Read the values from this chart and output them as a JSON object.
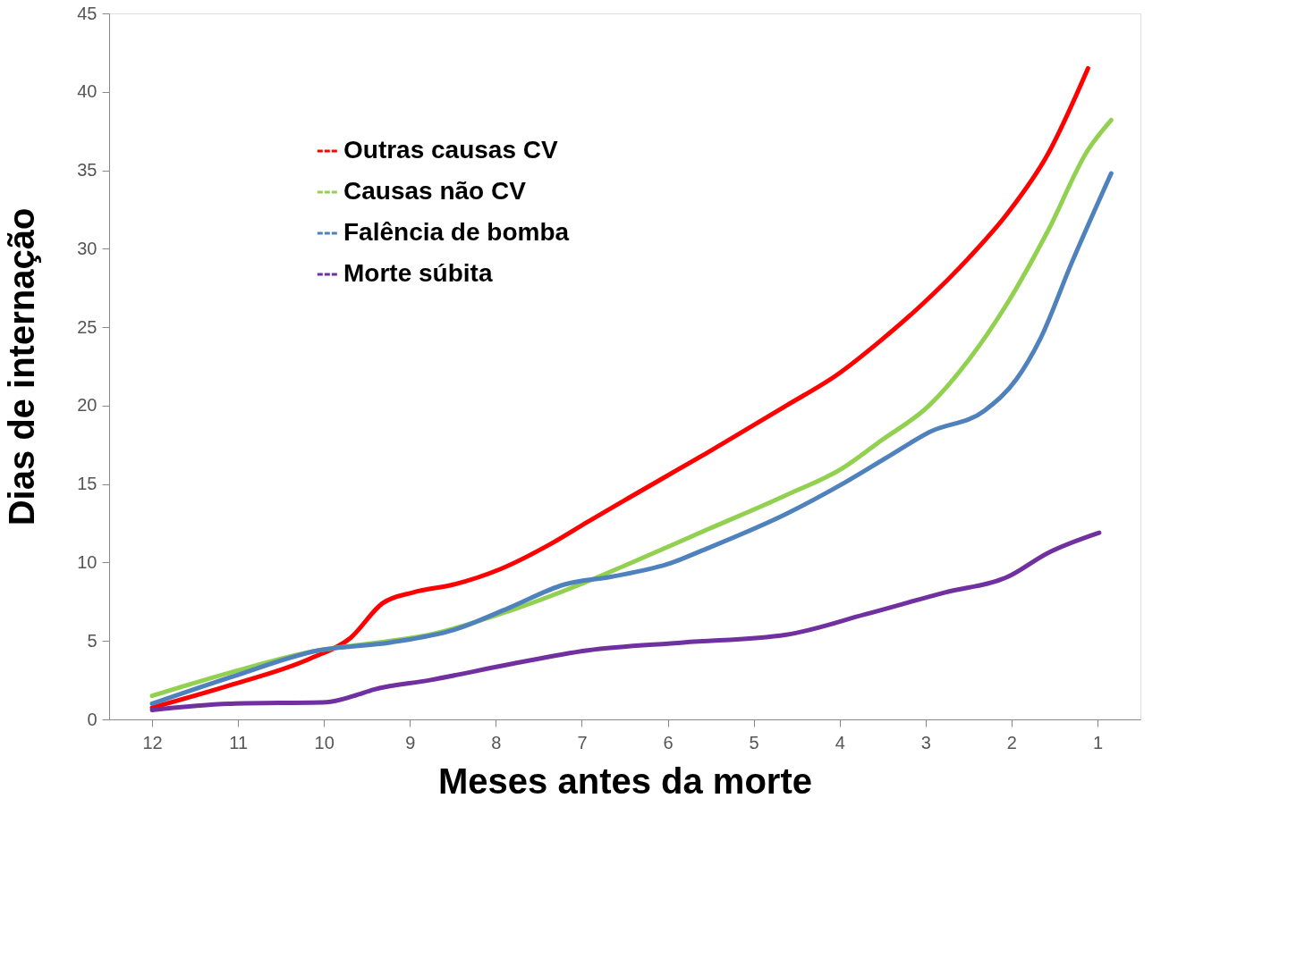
{
  "chart_data": {
    "type": "line",
    "xlabel": "Meses antes da morte",
    "ylabel": "Dias de internação",
    "xlim": [
      12.5,
      0.5
    ],
    "xticks": [
      12,
      11,
      10,
      9,
      8,
      7,
      6,
      5,
      4,
      3,
      2,
      1
    ],
    "ylim": [
      0,
      45
    ],
    "yticks": [
      0,
      5,
      10,
      15,
      20,
      25,
      30,
      35,
      40,
      45
    ],
    "grid": false,
    "legend": "top left",
    "marker": "none",
    "line_style": "solid",
    "series": [
      {
        "name": "Outras causas CV",
        "color": "#ff0000",
        "x": [
          12,
          11.08,
          10.15,
          9.69,
          9.32,
          8.96,
          8.49,
          7.94,
          7.39,
          6.93,
          6.46,
          5.54,
          4.62,
          4.02,
          3.51,
          3.05,
          2.5,
          2.04,
          1.58,
          1.11
        ],
        "values": [
          0.75,
          2.2,
          3.9,
          5.2,
          7.4,
          8.1,
          8.6,
          9.6,
          11.1,
          12.6,
          14.1,
          17.0,
          20.0,
          22.0,
          24.2,
          26.4,
          29.4,
          32.3,
          36.0,
          41.5
        ]
      },
      {
        "name": "Causas não CV",
        "color": "#92d050",
        "x": [
          12,
          11.08,
          10.06,
          9.51,
          8.77,
          7.85,
          7.02,
          6.46,
          5.54,
          4.62,
          3.97,
          3.51,
          2.96,
          2.5,
          2.04,
          1.58,
          1.11,
          0.84
        ],
        "values": [
          1.5,
          3.0,
          4.4,
          4.8,
          5.4,
          6.9,
          8.6,
          9.9,
          12.1,
          14.3,
          16.0,
          17.8,
          20.0,
          22.9,
          26.6,
          31.1,
          36.3,
          38.2
        ]
      },
      {
        "name": "Falência de bomba",
        "color": "#4f81bd",
        "x": [
          12,
          11.08,
          10.06,
          9.23,
          8.49,
          7.85,
          7.2,
          6.65,
          6.0,
          5.54,
          4.62,
          3.97,
          3.42,
          2.96,
          2.31,
          1.94,
          1.67,
          1.3,
          0.84
        ],
        "values": [
          1.0,
          2.7,
          4.4,
          4.9,
          5.7,
          7.1,
          8.6,
          9.1,
          9.9,
          10.9,
          13.1,
          15.0,
          16.8,
          18.3,
          19.7,
          21.7,
          24.2,
          29.1,
          34.8
        ]
      },
      {
        "name": "Morte súbita",
        "color": "#7030a0",
        "x": [
          12,
          11.08,
          9.97,
          9.65,
          9.42,
          8.77,
          7.85,
          6.93,
          5.82,
          4.62,
          3.7,
          2.77,
          2.04,
          1.58,
          0.98
        ],
        "values": [
          0.6,
          1.0,
          1.1,
          1.5,
          1.9,
          2.5,
          3.5,
          4.4,
          4.9,
          5.4,
          6.7,
          8.1,
          9.1,
          10.6,
          11.9
        ]
      }
    ]
  }
}
